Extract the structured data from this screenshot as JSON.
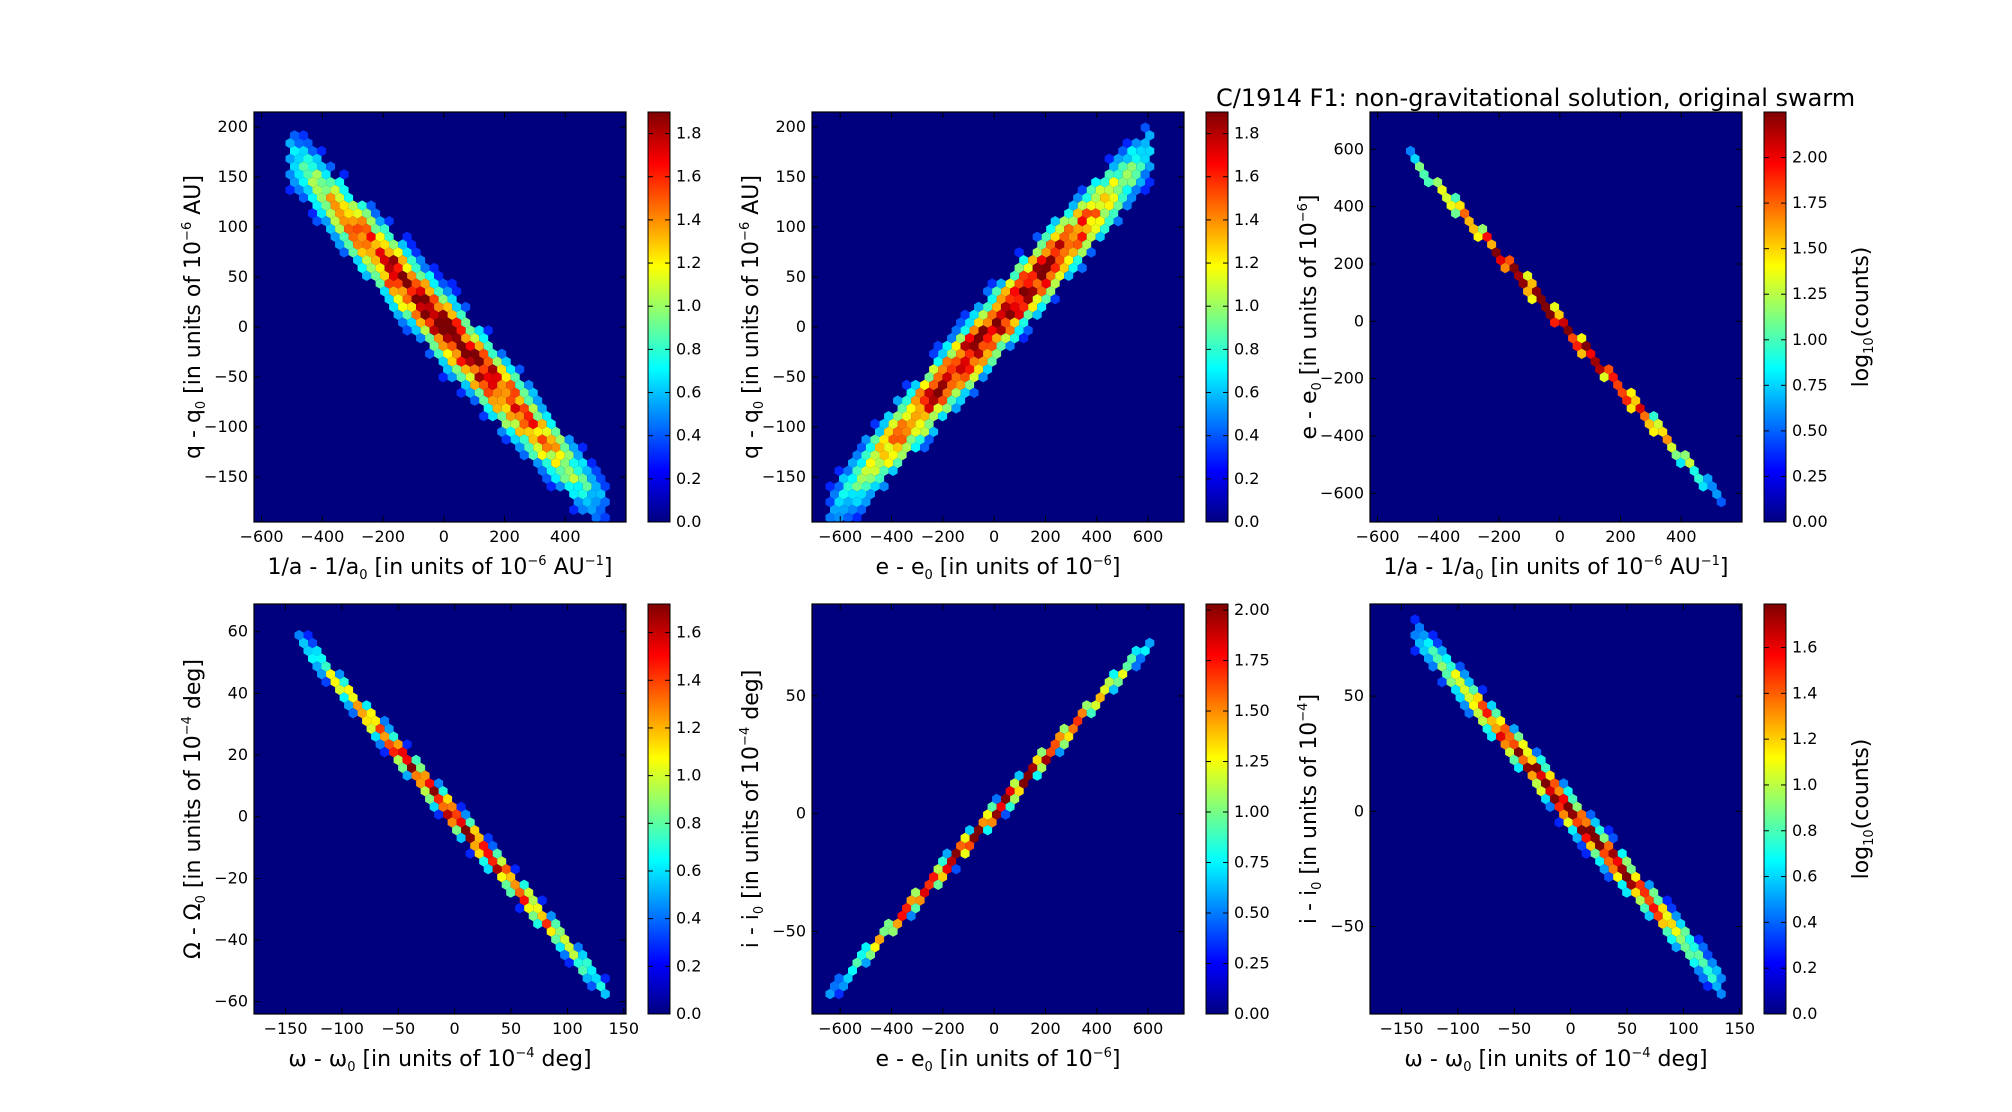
{
  "figure_title": "C/1914 F1:  non-gravitational solution, original swarm",
  "colormap": {
    "name": "jet",
    "stops": [
      "#00007f",
      "#0000ff",
      "#007fff",
      "#00ffff",
      "#7fff7f",
      "#ffff00",
      "#ff7f00",
      "#ff0000",
      "#7f0000"
    ],
    "background": "#00007f"
  },
  "chart_data": [
    {
      "type": "hexbin",
      "id": "p1",
      "title": "",
      "xlabel": "1/a - 1/a0 [in units of 10-6 AU-1]",
      "xlabel_parts": {
        "a": "1/a - 1/a",
        "sub": "0",
        "b": " [in units of 10",
        "sup": "-6",
        "c": " AU",
        "sup2": "-1",
        "d": "]"
      },
      "ylabel": "q - q0 [in units of 10-6 AU]",
      "ylabel_parts": {
        "a": "q - q",
        "sub": "0",
        "b": " [in units of 10",
        "sup": "-6",
        "c": " AU]"
      },
      "xlim": [
        -625,
        600
      ],
      "ylim": [
        -195,
        215
      ],
      "xticks": [
        -600,
        -400,
        -200,
        0,
        200,
        400
      ],
      "xtick_labels": [
        "−600",
        "−400",
        "−200",
        "0",
        "200",
        "400"
      ],
      "yticks": [
        -150,
        -100,
        -50,
        0,
        50,
        100,
        150,
        200
      ],
      "ytick_labels": [
        "−150",
        "−100",
        "−50",
        "0",
        "50",
        "100",
        "150",
        "200"
      ],
      "trend": {
        "x_start": -510,
        "x_end": 530,
        "slope": -0.339,
        "intercept": 0,
        "core_halfwidth": 16,
        "spread_halfwidth": 36,
        "extent": 520
      },
      "colorbar": {
        "label": "",
        "range": [
          0,
          1.9
        ],
        "ticks": [
          0.0,
          0.2,
          0.4,
          0.6,
          0.8,
          1.0,
          1.2,
          1.4,
          1.6,
          1.8
        ],
        "tick_labels": [
          "0.0",
          "0.2",
          "0.4",
          "0.6",
          "0.8",
          "1.0",
          "1.2",
          "1.4",
          "1.6",
          "1.8"
        ]
      }
    },
    {
      "type": "hexbin",
      "id": "p2",
      "title": "",
      "xlabel": "e - e0 [in units of 10-6]",
      "xlabel_parts": {
        "a": "e - e",
        "sub": "0",
        "b": " [in units of 10",
        "sup": "-6",
        "c": "]",
        "sup2": "",
        "d": ""
      },
      "ylabel": "q - q0 [in units of 10-6 AU]",
      "ylabel_parts": {
        "a": "q - q",
        "sub": "0",
        "b": " [in units of 10",
        "sup": "-6",
        "c": " AU]"
      },
      "xlim": [
        -710,
        740
      ],
      "ylim": [
        -195,
        215
      ],
      "xticks": [
        -600,
        -400,
        -200,
        0,
        200,
        400,
        600
      ],
      "xtick_labels": [
        "−600",
        "−400",
        "−200",
        "0",
        "200",
        "400",
        "600"
      ],
      "yticks": [
        -150,
        -100,
        -50,
        0,
        50,
        100,
        150,
        200
      ],
      "ytick_labels": [
        "−150",
        "−100",
        "−50",
        "0",
        "50",
        "100",
        "150",
        "200"
      ],
      "trend": {
        "x_start": -640,
        "x_end": 600,
        "slope": 0.289,
        "intercept": 0,
        "core_halfwidth": 16,
        "spread_halfwidth": 34,
        "extent": 620
      },
      "colorbar": {
        "label": "",
        "range": [
          0,
          1.9
        ],
        "ticks": [
          0.0,
          0.2,
          0.4,
          0.6,
          0.8,
          1.0,
          1.2,
          1.4,
          1.6,
          1.8
        ],
        "tick_labels": [
          "0.0",
          "0.2",
          "0.4",
          "0.6",
          "0.8",
          "1.0",
          "1.2",
          "1.4",
          "1.6",
          "1.8"
        ]
      }
    },
    {
      "type": "hexbin",
      "id": "p3",
      "title": "",
      "xlabel": "1/a - 1/a0 [in units of 10-6 AU-1]",
      "xlabel_parts": {
        "a": "1/a - 1/a",
        "sub": "0",
        "b": " [in units of 10",
        "sup": "-6",
        "c": " AU",
        "sup2": "-1",
        "d": "]"
      },
      "ylabel": "e - e0 [in units of 10-6]",
      "ylabel_parts": {
        "a": "e - e",
        "sub": "0",
        "b": " [in units of 10",
        "sup": "-6",
        "c": "]"
      },
      "xlim": [
        -625,
        600
      ],
      "ylim": [
        -700,
        730
      ],
      "xticks": [
        -600,
        -400,
        -200,
        0,
        200,
        400
      ],
      "xtick_labels": [
        "−600",
        "−400",
        "−200",
        "0",
        "200",
        "400"
      ],
      "yticks": [
        -600,
        -400,
        -200,
        0,
        200,
        400,
        600
      ],
      "ytick_labels": [
        "−600",
        "−400",
        "−200",
        "0",
        "200",
        "400",
        "600"
      ],
      "trend": {
        "x_start": -510,
        "x_end": 530,
        "slope": -1.17,
        "intercept": 0,
        "core_halfwidth": 6,
        "spread_halfwidth": 8,
        "extent": 520
      },
      "colorbar": {
        "label": "log10(counts)",
        "label_parts": {
          "a": "log",
          "sub": "10",
          "b": "(counts)"
        },
        "range": [
          0,
          2.25
        ],
        "ticks": [
          0.0,
          0.25,
          0.5,
          0.75,
          1.0,
          1.25,
          1.5,
          1.75,
          2.0
        ],
        "tick_labels": [
          "0.00",
          "0.25",
          "0.50",
          "0.75",
          "1.00",
          "1.25",
          "1.50",
          "1.75",
          "2.00"
        ]
      }
    },
    {
      "type": "hexbin",
      "id": "p4",
      "title": "",
      "xlabel": "ω - ω0 [in units of 10-4 deg]",
      "xlabel_parts": {
        "a": "ω - ω",
        "sub": "0",
        "b": " [in units of 10",
        "sup": "-4",
        "c": " deg]",
        "sup2": "",
        "d": ""
      },
      "ylabel": "Ω - Ω0 [in units of 10-4 deg]",
      "ylabel_parts": {
        "a": "Ω - Ω",
        "sub": "0",
        "b": " [in units of 10",
        "sup": "-4",
        "c": " deg]"
      },
      "xlim": [
        -178,
        152
      ],
      "ylim": [
        -64,
        69
      ],
      "xticks": [
        -150,
        -100,
        -50,
        0,
        50,
        100,
        150
      ],
      "xtick_labels": [
        "−150",
        "−100",
        "−50",
        "0",
        "50",
        "100",
        "150"
      ],
      "yticks": [
        -60,
        -40,
        -20,
        0,
        20,
        40,
        60
      ],
      "ytick_labels": [
        "−60",
        "−40",
        "−20",
        "0",
        "20",
        "40",
        "60"
      ],
      "trend": {
        "x_start": -140,
        "x_end": 135,
        "slope": -0.42,
        "intercept": 0,
        "core_halfwidth": 6,
        "spread_halfwidth": 14,
        "extent": 140
      },
      "colorbar": {
        "label": "",
        "range": [
          0,
          1.72
        ],
        "ticks": [
          0.0,
          0.2,
          0.4,
          0.6,
          0.8,
          1.0,
          1.2,
          1.4,
          1.6
        ],
        "tick_labels": [
          "0.0",
          "0.2",
          "0.4",
          "0.6",
          "0.8",
          "1.0",
          "1.2",
          "1.4",
          "1.6"
        ]
      }
    },
    {
      "type": "hexbin",
      "id": "p5",
      "title": "",
      "xlabel": "e - e0 [in units of 10-6]",
      "xlabel_parts": {
        "a": "e - e",
        "sub": "0",
        "b": " [in units of 10",
        "sup": "-6",
        "c": "]",
        "sup2": "",
        "d": ""
      },
      "ylabel": "i - i0 [in units of 10-4 deg]",
      "ylabel_parts": {
        "a": "i - i",
        "sub": "0",
        "b": " [in units of 10",
        "sup": "-4",
        "c": " deg]"
      },
      "xlim": [
        -710,
        740
      ],
      "ylim": [
        -85,
        89
      ],
      "xticks": [
        -600,
        -400,
        -200,
        0,
        200,
        400,
        600
      ],
      "xtick_labels": [
        "−600",
        "−400",
        "−200",
        "0",
        "200",
        "400",
        "600"
      ],
      "yticks": [
        -50,
        0,
        50
      ],
      "ytick_labels": [
        "−50",
        "0",
        "50"
      ],
      "trend": {
        "x_start": -640,
        "x_end": 600,
        "slope": 0.12,
        "intercept": 0,
        "core_halfwidth": 5,
        "spread_halfwidth": 10,
        "extent": 620
      },
      "colorbar": {
        "label": "",
        "range": [
          0,
          2.03
        ],
        "ticks": [
          0.0,
          0.25,
          0.5,
          0.75,
          1.0,
          1.25,
          1.5,
          1.75,
          2.0
        ],
        "tick_labels": [
          "0.00",
          "0.25",
          "0.50",
          "0.75",
          "1.00",
          "1.25",
          "1.50",
          "1.75",
          "2.00"
        ]
      }
    },
    {
      "type": "hexbin",
      "id": "p6",
      "title": "",
      "xlabel": "ω - ω0 [in units of 10-4 deg]",
      "xlabel_parts": {
        "a": "ω - ω",
        "sub": "0",
        "b": " [in units of 10",
        "sup": "-4",
        "c": " deg]",
        "sup2": "",
        "d": ""
      },
      "ylabel": "i - i0 [in units of 10-4]",
      "ylabel_parts": {
        "a": "i - i",
        "sub": "0",
        "b": " [in units of 10",
        "sup": "-4",
        "c": "]"
      },
      "xlim": [
        -178,
        152
      ],
      "ylim": [
        -88,
        90
      ],
      "xticks": [
        -150,
        -100,
        -50,
        0,
        50,
        100,
        150
      ],
      "xtick_labels": [
        "−150",
        "−100",
        "−50",
        "0",
        "50",
        "100",
        "150"
      ],
      "yticks": [
        -50,
        0,
        50
      ],
      "ytick_labels": [
        "−50",
        "0",
        "50"
      ],
      "trend": {
        "x_start": -140,
        "x_end": 135,
        "slope": -0.56,
        "intercept": 0,
        "core_halfwidth": 8,
        "spread_halfwidth": 18,
        "extent": 140
      },
      "colorbar": {
        "label": "log10(counts)",
        "label_parts": {
          "a": "log",
          "sub": "10",
          "b": "(counts)"
        },
        "range": [
          0,
          1.79
        ],
        "ticks": [
          0.0,
          0.2,
          0.4,
          0.6,
          0.8,
          1.0,
          1.2,
          1.4,
          1.6
        ],
        "tick_labels": [
          "0.0",
          "0.2",
          "0.4",
          "0.6",
          "0.8",
          "1.0",
          "1.2",
          "1.4",
          "1.6"
        ]
      }
    }
  ]
}
